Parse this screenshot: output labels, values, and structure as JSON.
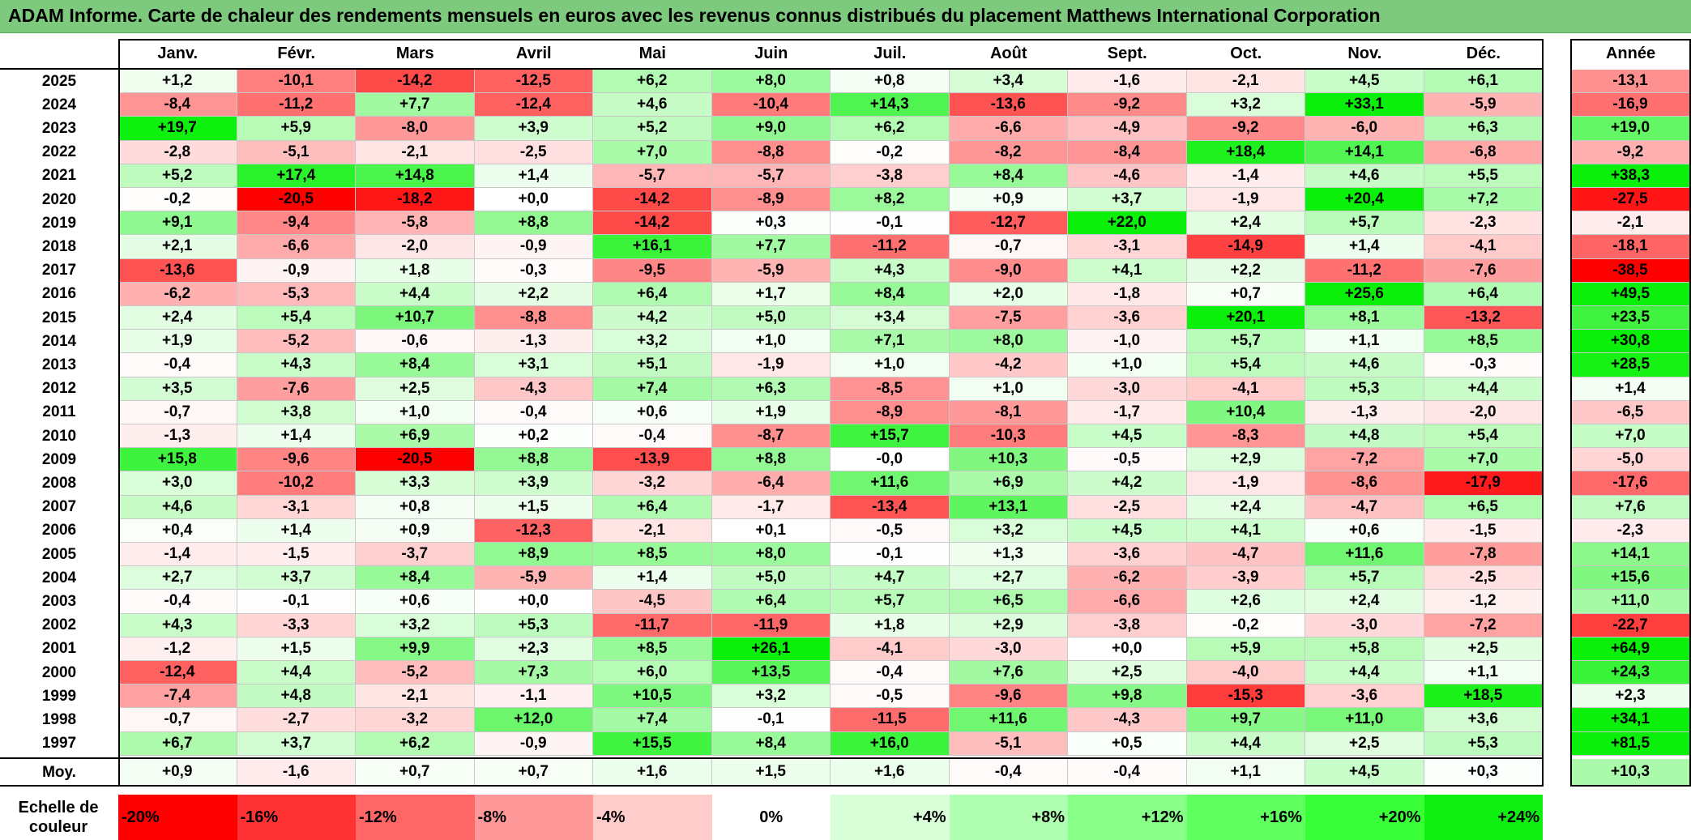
{
  "title": "ADAM Informe. Carte de chaleur des rendements mensuels en euros avec les revenus connus distribués du placement Matthews International Corporation",
  "chart_data": {
    "type": "heatmap",
    "title": "ADAM Informe. Carte de chaleur des rendements mensuels en euros avec les revenus connus distribués du placement Matthews International Corporation",
    "columns": [
      "Janv.",
      "Févr.",
      "Mars",
      "Avril",
      "Mai",
      "Juin",
      "Juil.",
      "Août",
      "Sept.",
      "Oct.",
      "Nov.",
      "Déc."
    ],
    "annual_column": "Année",
    "average_row_label": "Moy.",
    "rows": [
      {
        "year": "2025",
        "values": [
          "+1,2",
          "-10,1",
          "-14,2",
          "-12,5",
          "+6,2",
          "+8,0",
          "+0,8",
          "+3,4",
          "-1,6",
          "-2,1",
          "+4,5",
          "+6,1"
        ],
        "annual": "-13,1"
      },
      {
        "year": "2024",
        "values": [
          "-8,4",
          "-11,2",
          "+7,7",
          "-12,4",
          "+4,6",
          "-10,4",
          "+14,3",
          "-13,6",
          "-9,2",
          "+3,2",
          "+33,1",
          "-5,9"
        ],
        "annual": "-16,9"
      },
      {
        "year": "2023",
        "values": [
          "+19,7",
          "+5,9",
          "-8,0",
          "+3,9",
          "+5,2",
          "+9,0",
          "+6,2",
          "-6,6",
          "-4,9",
          "-9,2",
          "-6,0",
          "+6,3"
        ],
        "annual": "+19,0"
      },
      {
        "year": "2022",
        "values": [
          "-2,8",
          "-5,1",
          "-2,1",
          "-2,5",
          "+7,0",
          "-8,8",
          "-0,2",
          "-8,2",
          "-8,4",
          "+18,4",
          "+14,1",
          "-6,8"
        ],
        "annual": "-9,2"
      },
      {
        "year": "2021",
        "values": [
          "+5,2",
          "+17,4",
          "+14,8",
          "+1,4",
          "-5,7",
          "-5,7",
          "-3,8",
          "+8,4",
          "-4,6",
          "-1,4",
          "+4,6",
          "+5,5"
        ],
        "annual": "+38,3"
      },
      {
        "year": "2020",
        "values": [
          "-0,2",
          "-20,5",
          "-18,2",
          "+0,0",
          "-14,2",
          "-8,9",
          "+8,2",
          "+0,9",
          "+3,7",
          "-1,9",
          "+20,4",
          "+7,2"
        ],
        "annual": "-27,5"
      },
      {
        "year": "2019",
        "values": [
          "+9,1",
          "-9,4",
          "-5,8",
          "+8,8",
          "-14,2",
          "+0,3",
          "-0,1",
          "-12,7",
          "+22,0",
          "+2,4",
          "+5,7",
          "-2,3"
        ],
        "annual": "-2,1"
      },
      {
        "year": "2018",
        "values": [
          "+2,1",
          "-6,6",
          "-2,0",
          "-0,9",
          "+16,1",
          "+7,7",
          "-11,2",
          "-0,7",
          "-3,1",
          "-14,9",
          "+1,4",
          "-4,1"
        ],
        "annual": "-18,1"
      },
      {
        "year": "2017",
        "values": [
          "-13,6",
          "-0,9",
          "+1,8",
          "-0,3",
          "-9,5",
          "-5,9",
          "+4,3",
          "-9,0",
          "+4,1",
          "+2,2",
          "-11,2",
          "-7,6"
        ],
        "annual": "-38,5"
      },
      {
        "year": "2016",
        "values": [
          "-6,2",
          "-5,3",
          "+4,4",
          "+2,2",
          "+6,4",
          "+1,7",
          "+8,4",
          "+2,0",
          "-1,8",
          "+0,7",
          "+25,6",
          "+6,4"
        ],
        "annual": "+49,5"
      },
      {
        "year": "2015",
        "values": [
          "+2,4",
          "+5,4",
          "+10,7",
          "-8,8",
          "+4,2",
          "+5,0",
          "+3,4",
          "-7,5",
          "-3,6",
          "+20,1",
          "+8,1",
          "-13,2"
        ],
        "annual": "+23,5"
      },
      {
        "year": "2014",
        "values": [
          "+1,9",
          "-5,2",
          "-0,6",
          "-1,3",
          "+3,2",
          "+1,0",
          "+7,1",
          "+8,0",
          "-1,0",
          "+5,7",
          "+1,1",
          "+8,5"
        ],
        "annual": "+30,8"
      },
      {
        "year": "2013",
        "values": [
          "-0,4",
          "+4,3",
          "+8,4",
          "+3,1",
          "+5,1",
          "-1,9",
          "+1,0",
          "-4,2",
          "+1,0",
          "+5,4",
          "+4,6",
          "-0,3"
        ],
        "annual": "+28,5"
      },
      {
        "year": "2012",
        "values": [
          "+3,5",
          "-7,6",
          "+2,5",
          "-4,3",
          "+7,4",
          "+6,3",
          "-8,5",
          "+1,0",
          "-3,0",
          "-4,1",
          "+5,3",
          "+4,4"
        ],
        "annual": "+1,4"
      },
      {
        "year": "2011",
        "values": [
          "-0,7",
          "+3,8",
          "+1,0",
          "-0,4",
          "+0,6",
          "+1,9",
          "-8,9",
          "-8,1",
          "-1,7",
          "+10,4",
          "-1,3",
          "-2,0"
        ],
        "annual": "-6,5"
      },
      {
        "year": "2010",
        "values": [
          "-1,3",
          "+1,4",
          "+6,9",
          "+0,2",
          "-0,4",
          "-8,7",
          "+15,7",
          "-10,3",
          "+4,5",
          "-8,3",
          "+4,8",
          "+5,4"
        ],
        "annual": "+7,0"
      },
      {
        "year": "2009",
        "values": [
          "+15,8",
          "-9,6",
          "-20,5",
          "+8,8",
          "-13,9",
          "+8,8",
          "-0,0",
          "+10,3",
          "-0,5",
          "+2,9",
          "-7,2",
          "+7,0"
        ],
        "annual": "-5,0"
      },
      {
        "year": "2008",
        "values": [
          "+3,0",
          "-10,2",
          "+3,3",
          "+3,9",
          "-3,2",
          "-6,4",
          "+11,6",
          "+6,9",
          "+4,2",
          "-1,9",
          "-8,6",
          "-17,9"
        ],
        "annual": "-17,6"
      },
      {
        "year": "2007",
        "values": [
          "+4,6",
          "-3,1",
          "+0,8",
          "+1,5",
          "+6,4",
          "-1,7",
          "-13,4",
          "+13,1",
          "-2,5",
          "+2,4",
          "-4,7",
          "+6,5"
        ],
        "annual": "+7,6"
      },
      {
        "year": "2006",
        "values": [
          "+0,4",
          "+1,4",
          "+0,9",
          "-12,3",
          "-2,1",
          "+0,1",
          "-0,5",
          "+3,2",
          "+4,5",
          "+4,1",
          "+0,6",
          "-1,5"
        ],
        "annual": "-2,3"
      },
      {
        "year": "2005",
        "values": [
          "-1,4",
          "-1,5",
          "-3,7",
          "+8,9",
          "+8,5",
          "+8,0",
          "-0,1",
          "+1,3",
          "-3,6",
          "-4,7",
          "+11,6",
          "-7,8"
        ],
        "annual": "+14,1"
      },
      {
        "year": "2004",
        "values": [
          "+2,7",
          "+3,7",
          "+8,4",
          "-5,9",
          "+1,4",
          "+5,0",
          "+4,7",
          "+2,7",
          "-6,2",
          "-3,9",
          "+5,7",
          "-2,5"
        ],
        "annual": "+15,6"
      },
      {
        "year": "2003",
        "values": [
          "-0,4",
          "-0,1",
          "+0,6",
          "+0,0",
          "-4,5",
          "+6,4",
          "+5,7",
          "+6,5",
          "-6,6",
          "+2,6",
          "+2,4",
          "-1,2"
        ],
        "annual": "+11,0"
      },
      {
        "year": "2002",
        "values": [
          "+4,3",
          "-3,3",
          "+3,2",
          "+5,3",
          "-11,7",
          "-11,9",
          "+1,8",
          "+2,9",
          "-3,8",
          "-0,2",
          "-3,0",
          "-7,2"
        ],
        "annual": "-22,7"
      },
      {
        "year": "2001",
        "values": [
          "-1,2",
          "+1,5",
          "+9,9",
          "+2,3",
          "+8,5",
          "+26,1",
          "-4,1",
          "-3,0",
          "+0,0",
          "+5,9",
          "+5,8",
          "+2,5"
        ],
        "annual": "+64,9"
      },
      {
        "year": "2000",
        "values": [
          "-12,4",
          "+4,4",
          "-5,2",
          "+7,3",
          "+6,0",
          "+13,5",
          "-0,4",
          "+7,6",
          "+2,5",
          "-4,0",
          "+4,4",
          "+1,1"
        ],
        "annual": "+24,3"
      },
      {
        "year": "1999",
        "values": [
          "-7,4",
          "+4,8",
          "-2,1",
          "-1,1",
          "+10,5",
          "+3,2",
          "-0,5",
          "-9,6",
          "+9,8",
          "-15,3",
          "-3,6",
          "+18,5"
        ],
        "annual": "+2,3"
      },
      {
        "year": "1998",
        "values": [
          "-0,7",
          "-2,7",
          "-3,2",
          "+12,0",
          "+7,4",
          "-0,1",
          "-11,5",
          "+11,6",
          "-4,3",
          "+9,7",
          "+11,0",
          "+3,6"
        ],
        "annual": "+34,1"
      },
      {
        "year": "1997",
        "values": [
          "+6,7",
          "+3,7",
          "+6,2",
          "-0,9",
          "+15,5",
          "+8,4",
          "+16,0",
          "-5,1",
          "+0,5",
          "+4,4",
          "+2,5",
          "+5,3"
        ],
        "annual": "+81,5"
      }
    ],
    "averages": [
      "+0,9",
      "-1,6",
      "+0,7",
      "+0,7",
      "+1,6",
      "+1,5",
      "+1,6",
      "-0,4",
      "-0,4",
      "+1,1",
      "+4,5",
      "+0,3"
    ],
    "average_annual": "+10,3",
    "scale_label": "Echelle de couleur",
    "scale": [
      {
        "label": "-20%",
        "value": -20,
        "color": "#ff0000"
      },
      {
        "label": "-16%",
        "value": -16,
        "color": "#ff3333"
      },
      {
        "label": "-12%",
        "value": -12,
        "color": "#ff6666"
      },
      {
        "label": "-8%",
        "value": -8,
        "color": "#ff9999"
      },
      {
        "label": "-4%",
        "value": -4,
        "color": "#ffcccc"
      },
      {
        "label": "0%",
        "value": 0,
        "color": "#ffffff"
      },
      {
        "label": "+4%",
        "value": 4,
        "color": "#d8ffd8"
      },
      {
        "label": "+8%",
        "value": 8,
        "color": "#b0ffb0"
      },
      {
        "label": "+12%",
        "value": 12,
        "color": "#88ff88"
      },
      {
        "label": "+16%",
        "value": 16,
        "color": "#60ff60"
      },
      {
        "label": "+20%",
        "value": 20,
        "color": "#38ff38"
      },
      {
        "label": "+24%",
        "value": 24,
        "color": "#10f010"
      }
    ]
  }
}
